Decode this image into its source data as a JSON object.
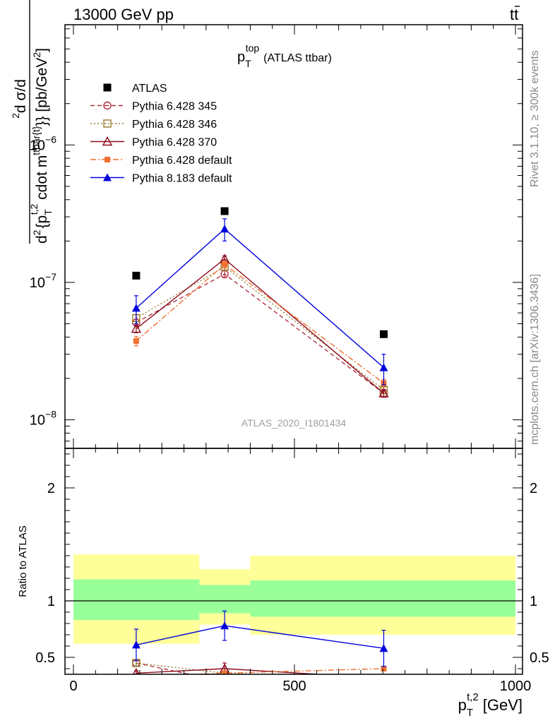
{
  "header": {
    "energy_label": "13000 GeV pp",
    "process_base": "tt",
    "process_bar": "t",
    "process_label": "tt̄"
  },
  "side_labels": {
    "rivet": "Rivet 3.1.10, ≥ 300k events",
    "mcplots": "mcplots.cern.ch [arXiv:1306.3436]"
  },
  "colors": {
    "atlas": "#000000",
    "py6_345": "#b03040",
    "py6_346": "#9a7a30",
    "py6_370": "#8b0a1a",
    "py6_default": "#f07030",
    "py8_default": "#0000dd",
    "band_outer": "#ffff99",
    "band_inner": "#99ff99"
  },
  "chart_data": [
    {
      "type": "line",
      "panel": "main",
      "title": "p_T^top (ATLAS ttbar)",
      "title_main": "p",
      "title_sub": "T",
      "title_sup": "top",
      "title_rest": "(ATLAS ttbar)",
      "analysis_label": "ATLAS_2020_I1801434",
      "ylabel": "d²σ/d{p_T^t,2 cdot m^ttbar{t}} [pb/GeV²]",
      "ylabel_parts": {
        "num_sup": "2",
        "num": "d σ/d",
        "den_pre": "d",
        "den_sup": "2",
        "den_brace": "{p",
        "den_sub": "T",
        "den_sup2": "t,2",
        "den_mid": " cdot m",
        "den_sup3": "ttbar{t}",
        "den_end": "}} [pb/GeV",
        "den_sup4": "2",
        "den_close": "]"
      },
      "yscale": "log",
      "ylim": [
        6.2e-09,
        7.5e-06
      ],
      "xlim": [
        -20,
        1010
      ],
      "ytick_labels": [
        {
          "base": "10",
          "exp": "−6",
          "value": 1e-06
        },
        {
          "base": "10",
          "exp": "−7",
          "value": 1e-07
        },
        {
          "base": "10",
          "exp": "−8",
          "value": 1e-08
        }
      ],
      "legend_position": "top-left",
      "series": [
        {
          "name": "ATLAS",
          "style": "data",
          "marker": "square-filled",
          "color": "#000000",
          "x": [
            142,
            342,
            702
          ],
          "values": [
            1.12e-07,
            3.3e-07,
            4.2e-08
          ],
          "bins": [
            [
              0,
              285
            ],
            [
              285,
              400
            ],
            [
              400,
              1000
            ]
          ]
        },
        {
          "name": "Pythia 6.428 345",
          "style": "dashed",
          "marker": "circle-open",
          "color": "#b03040",
          "x": [
            142,
            342,
            702
          ],
          "values": [
            5.1e-08,
            1.15e-07,
            1.56e-08
          ],
          "err": [
            3e-09,
            7e-09,
            1e-09
          ]
        },
        {
          "name": "Pythia 6.428 346",
          "style": "dotted",
          "marker": "square-open",
          "color": "#9a7a30",
          "x": [
            142,
            342,
            702
          ],
          "values": [
            5.5e-08,
            1.3e-07,
            1.65e-08
          ],
          "err": [
            3e-09,
            7e-09,
            1e-09
          ]
        },
        {
          "name": "Pythia 6.428 370",
          "style": "solid",
          "marker": "triangle-open",
          "color": "#8b0a1a",
          "x": [
            142,
            342,
            702
          ],
          "values": [
            4.6e-08,
            1.48e-07,
            1.56e-08
          ],
          "err": [
            3e-09,
            8e-09,
            1e-09
          ]
        },
        {
          "name": "Pythia 6.428 default",
          "style": "dashdot",
          "marker": "square-filled-small",
          "color": "#f07030",
          "x": [
            142,
            342,
            702
          ],
          "values": [
            3.75e-08,
            1.35e-07,
            1.85e-08
          ],
          "err": [
            3e-09,
            8e-09,
            1.2e-09
          ]
        },
        {
          "name": "Pythia 8.183 default",
          "style": "solid",
          "marker": "triangle-filled",
          "color": "#0000dd",
          "x": [
            142,
            342,
            702
          ],
          "values": [
            6.5e-08,
            2.45e-07,
            2.4e-08
          ],
          "err": [
            1.5e-08,
            4.5e-08,
            6e-09
          ]
        }
      ]
    },
    {
      "type": "line",
      "panel": "ratio",
      "ylabel": "Ratio to ATLAS",
      "xlabel": "p_T^t,2 [GeV]",
      "xlabel_parts": {
        "main": "p",
        "sub": "T",
        "sup": "t,2",
        "unit": "[GeV]"
      },
      "ylim": [
        0.35,
        2.35
      ],
      "xlim": [
        -20,
        1010
      ],
      "xtick_labels": [
        "0",
        "500",
        "1000"
      ],
      "xticks": [
        0,
        500,
        1000
      ],
      "ytick_labels": [
        "0.5",
        "1",
        "2"
      ],
      "yticks": [
        0.5,
        1,
        2
      ],
      "bands": [
        {
          "x0": 0,
          "x1": 285,
          "outer": [
            0.62,
            1.41
          ],
          "inner": [
            0.83,
            1.19
          ]
        },
        {
          "x0": 285,
          "x1": 400,
          "outer": [
            0.79,
            1.28
          ],
          "inner": [
            0.89,
            1.14
          ]
        },
        {
          "x0": 400,
          "x1": 1000,
          "outer": [
            0.7,
            1.4
          ],
          "inner": [
            0.86,
            1.18
          ]
        }
      ],
      "series": [
        {
          "name": "Pythia 6.428 345",
          "x": [
            142,
            262
          ],
          "values": [
            0.45,
            0.35
          ],
          "err": [
            0.03,
            0
          ],
          "marker_count": 1
        },
        {
          "name": "Pythia 6.428 346",
          "x": [
            142,
            342,
            402
          ],
          "values": [
            0.45,
            0.36,
            0.35
          ],
          "err": [
            0.03,
            0,
            0
          ],
          "marker_count": 1
        },
        {
          "name": "Pythia 6.428 370",
          "x": [
            142,
            342,
            552
          ],
          "values": [
            0.36,
            0.4,
            0.35
          ],
          "err": [
            0.02,
            0.05,
            0
          ],
          "marker_count": 2
        },
        {
          "name": "Pythia 6.428 default",
          "x": [
            142,
            342,
            702
          ],
          "values": [
            0.33,
            0.36,
            0.4
          ],
          "err": [
            0.02,
            0.02,
            0.02
          ],
          "marker_count": 3
        },
        {
          "name": "Pythia 8.183 default",
          "x": [
            142,
            342,
            702
          ],
          "values": [
            0.61,
            0.78,
            0.58
          ],
          "err": [
            0.14,
            0.13,
            0.16
          ],
          "marker_count": 3
        }
      ]
    }
  ]
}
